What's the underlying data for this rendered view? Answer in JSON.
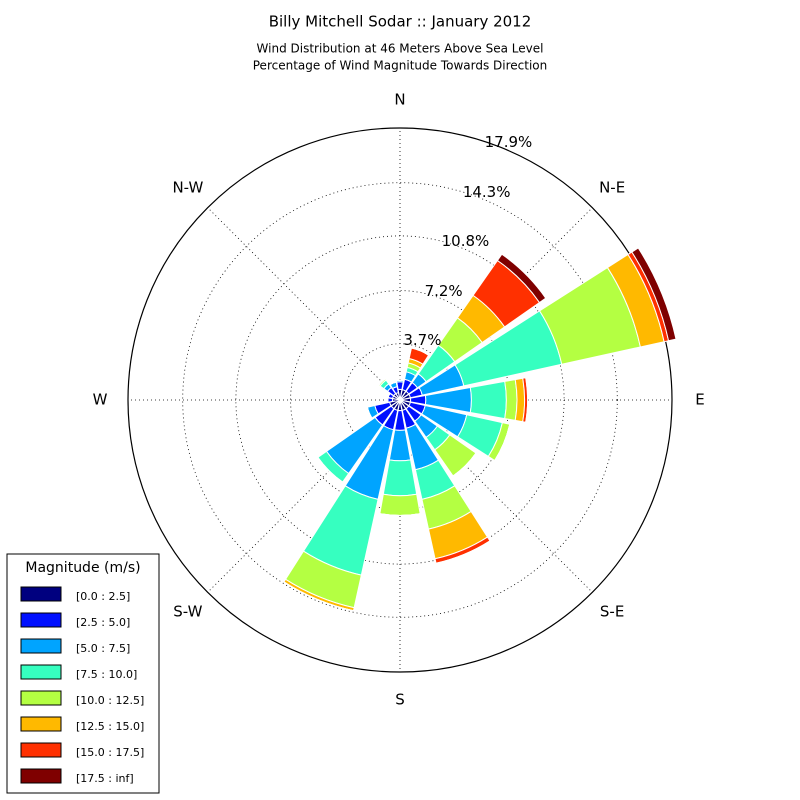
{
  "chart_data": {
    "type": "windrose",
    "title": "Billy Mitchell Sodar :: January 2012",
    "subtitle": [
      "Wind Distribution at 46 Meters Above Sea Level",
      "Percentage of Wind Magnitude Towards Direction"
    ],
    "categories": [
      "N",
      null,
      "N-E",
      null,
      "E",
      null,
      "S-E",
      null,
      "S",
      null,
      "S-W",
      null,
      "W",
      null,
      "N-W",
      null
    ],
    "ylim": [
      0,
      17.9
    ],
    "yticks": [
      {
        "value": 3.7,
        "label": "3.7%"
      },
      {
        "value": 7.2,
        "label": "7.2%"
      },
      {
        "value": 10.8,
        "label": "10.8%"
      },
      {
        "value": 14.3,
        "label": "14.3%"
      },
      {
        "value": 17.9,
        "label": "17.9%"
      }
    ],
    "grid": true,
    "legend_title": "Magnitude (m/s)",
    "legend_position": "lower-left",
    "series": [
      {
        "name": "[0.0 : 2.5]",
        "color": "#00007f",
        "values": [
          0.7,
          0.7,
          0.7,
          0.7,
          0.7,
          0.7,
          0.7,
          0.7,
          0.7,
          0.7,
          0.7,
          0.7,
          0.5,
          0.5,
          0.5,
          0.5
        ]
      },
      {
        "name": "[2.5 : 5.0]",
        "color": "#0010ff",
        "values": [
          0.5,
          0.7,
          0.7,
          0.8,
          1.0,
          1.0,
          1.0,
          1.2,
          1.3,
          1.3,
          1.3,
          1.0,
          0.3,
          0.3,
          0.5,
          0.4
        ]
      },
      {
        "name": "[5.0 : 7.5]",
        "color": "#00a4ff",
        "values": [
          0.1,
          0.5,
          0.7,
          2.8,
          3.0,
          2.8,
          1.3,
          2.8,
          2.0,
          4.7,
          3.9,
          0.5,
          0,
          0,
          0.3,
          0.3
        ]
      },
      {
        "name": "[7.5 : 10.0]",
        "color": "#36ffc0",
        "values": [
          0,
          0.3,
          2.3,
          6.6,
          2.3,
          2.4,
          1.0,
          2.0,
          2.3,
          5.1,
          0.7,
          0,
          0,
          0,
          0.3,
          0
        ]
      },
      {
        "name": "[10.0 : 12.5]",
        "color": "#b4ff42",
        "values": [
          0,
          0.3,
          2.2,
          5.3,
          0.7,
          0.5,
          2.1,
          2.0,
          1.3,
          2.2,
          0,
          0,
          0,
          0,
          0.1,
          0
        ]
      },
      {
        "name": "[12.5 : 15.0]",
        "color": "#ffb900",
        "values": [
          0,
          0.3,
          1.8,
          1.6,
          0.5,
          0,
          0,
          2.0,
          0,
          0.2,
          0,
          0,
          0,
          0,
          0,
          0
        ]
      },
      {
        "name": "[15.0 : 17.5]",
        "color": "#ff3000",
        "values": [
          0,
          0.7,
          2.8,
          0.3,
          0.2,
          0,
          0,
          0.3,
          0,
          0,
          0,
          0,
          0,
          0,
          0,
          0
        ]
      },
      {
        "name": "[17.5 : inf]",
        "color": "#7f0000",
        "values": [
          0,
          0,
          0.5,
          0.5,
          0,
          0,
          0,
          0,
          0,
          0,
          0,
          0,
          0,
          0,
          0,
          0
        ]
      }
    ]
  }
}
